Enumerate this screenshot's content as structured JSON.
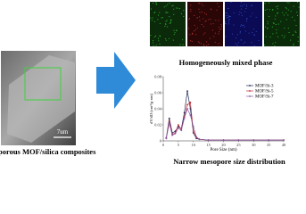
{
  "sem_caption": "Mesoporous MOF/silica composites",
  "scale_bar": "7um",
  "maps_caption": "Homogeneously mixed phase",
  "chart_caption": "Narrow mesopore size distribution",
  "chart_data": {
    "type": "line",
    "x_label": "Pore Size (nm)",
    "y_label": "dV/dD (cm³/g·nm)",
    "x": [
      1,
      2,
      3,
      4,
      5,
      6,
      7,
      8,
      9,
      10,
      11,
      12,
      15,
      20,
      25,
      30,
      35,
      40
    ],
    "xlim": [
      0,
      40
    ],
    "xticks": [
      0,
      5,
      10,
      15,
      20,
      25,
      30,
      35,
      40
    ],
    "ylim": [
      0,
      0.08
    ],
    "yticks": [
      0,
      0.02,
      0.04,
      0.06,
      0.08
    ],
    "legend": "upper right",
    "series": [
      {
        "name": "MOF/Si-3",
        "color": "#1f2a5a",
        "values": [
          0.004,
          0.028,
          0.01,
          0.012,
          0.018,
          0.015,
          0.035,
          0.062,
          0.04,
          0.01,
          0.003,
          0.002,
          0.001,
          0.001,
          0.001,
          0.001,
          0.001,
          0.001
        ]
      },
      {
        "name": "MOF/Si-5",
        "color": "#c0303a",
        "values": [
          0.003,
          0.025,
          0.008,
          0.01,
          0.02,
          0.014,
          0.03,
          0.045,
          0.048,
          0.012,
          0.004,
          0.002,
          0.001,
          0.001,
          0.001,
          0.001,
          0.001,
          0.001
        ]
      },
      {
        "name": "MOF/Si-7",
        "color": "#8a5aa8",
        "values": [
          0.003,
          0.022,
          0.007,
          0.009,
          0.016,
          0.013,
          0.028,
          0.04,
          0.032,
          0.018,
          0.005,
          0.002,
          0.001,
          0.001,
          0.001,
          0.001,
          0.001,
          0.001
        ]
      }
    ]
  }
}
